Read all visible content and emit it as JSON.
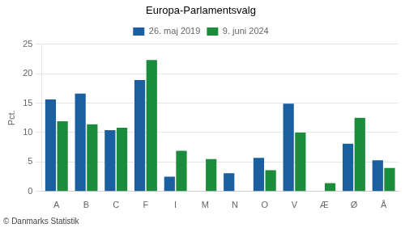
{
  "chart_data": {
    "type": "bar",
    "title": "Europa-Parlamentsvalg",
    "categories": [
      "A",
      "B",
      "C",
      "F",
      "I",
      "M",
      "N",
      "O",
      "V",
      "Æ",
      "Ø",
      "Å"
    ],
    "series": [
      {
        "name": "26. maj 2019",
        "color": "#1a5fa0",
        "values": [
          15.6,
          16.6,
          10.4,
          18.9,
          2.5,
          0.0,
          3.1,
          5.7,
          14.9,
          0.0,
          8.1,
          5.3
        ]
      },
      {
        "name": "9. juni 2024",
        "color": "#1a8c3c",
        "values": [
          11.9,
          11.4,
          10.8,
          22.3,
          6.9,
          5.5,
          0.0,
          3.6,
          10.0,
          1.4,
          12.5,
          4.0
        ]
      }
    ],
    "ylabel": "Pct.",
    "annotations": [
      "© Danmarks Statistik"
    ],
    "ylim": [
      0,
      25
    ],
    "yticks": [
      0,
      5,
      10,
      15,
      20,
      25
    ],
    "grid": true,
    "legend": "top"
  }
}
